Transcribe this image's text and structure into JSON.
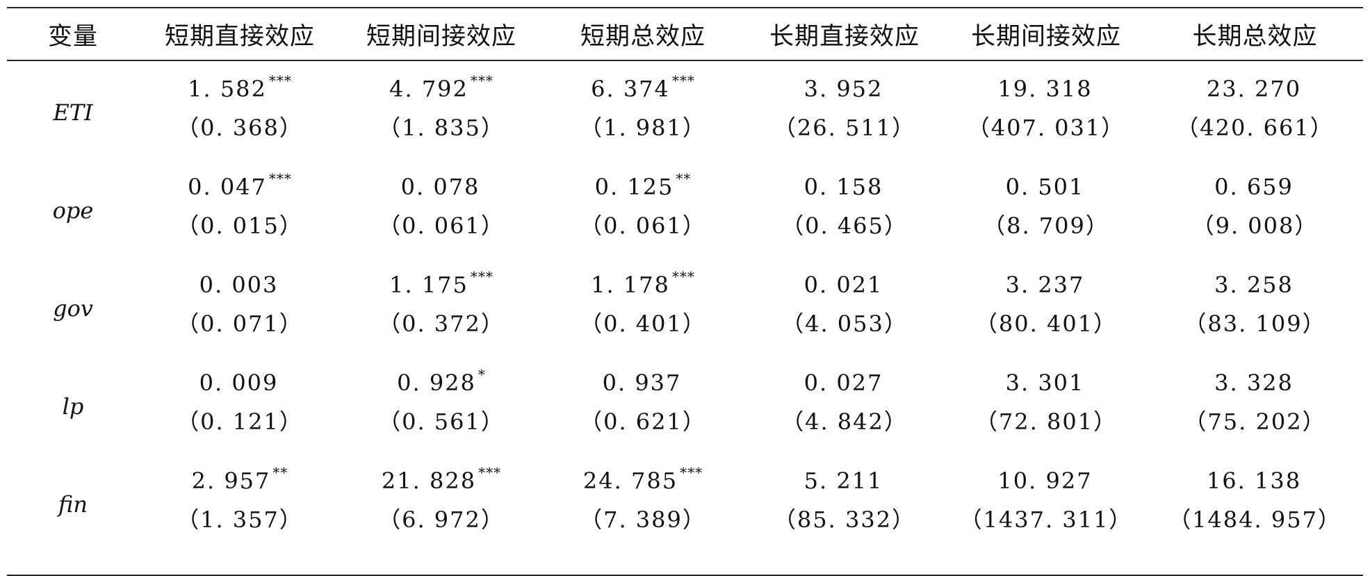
{
  "headers": [
    "变量",
    "短期直接效应",
    "短期间接效应",
    "短期总效应",
    "长期直接效应",
    "长期间接效应",
    "长期总效应"
  ],
  "rows": [
    {
      "var": "ETI",
      "cells": [
        {
          "coef": "1. 582",
          "stars": "***",
          "se": "（0. 368）"
        },
        {
          "coef": "4. 792",
          "stars": "***",
          "se": "（1. 835）"
        },
        {
          "coef": "6. 374",
          "stars": "***",
          "se": "（1. 981）"
        },
        {
          "coef": "3. 952",
          "stars": "",
          "se": "（26. 511）"
        },
        {
          "coef": "19. 318",
          "stars": "",
          "se": "（407. 031）"
        },
        {
          "coef": "23. 270",
          "stars": "",
          "se": "（420. 661）"
        }
      ]
    },
    {
      "var": "ope",
      "cells": [
        {
          "coef": "0. 047",
          "stars": "***",
          "se": "（0. 015）"
        },
        {
          "coef": "0. 078",
          "stars": "",
          "se": "（0. 061）"
        },
        {
          "coef": "0. 125",
          "stars": "**",
          "se": "（0. 061）"
        },
        {
          "coef": "0. 158",
          "stars": "",
          "se": "（0. 465）"
        },
        {
          "coef": "0. 501",
          "stars": "",
          "se": "（8. 709）"
        },
        {
          "coef": "0. 659",
          "stars": "",
          "se": "（9. 008）"
        }
      ]
    },
    {
      "var": "gov",
      "cells": [
        {
          "coef": "0. 003",
          "stars": "",
          "se": "（0. 071）"
        },
        {
          "coef": "1. 175",
          "stars": "***",
          "se": "（0. 372）"
        },
        {
          "coef": "1. 178",
          "stars": "***",
          "se": "（0. 401）"
        },
        {
          "coef": "0. 021",
          "stars": "",
          "se": "（4. 053）"
        },
        {
          "coef": "3. 237",
          "stars": "",
          "se": "（80. 401）"
        },
        {
          "coef": "3. 258",
          "stars": "",
          "se": "（83. 109）"
        }
      ]
    },
    {
      "var": "lp",
      "cells": [
        {
          "coef": "0. 009",
          "stars": "",
          "se": "（0. 121）"
        },
        {
          "coef": "0. 928",
          "stars": "*",
          "se": "（0. 561）"
        },
        {
          "coef": "0. 937",
          "stars": "",
          "se": "（0. 621）"
        },
        {
          "coef": "0. 027",
          "stars": "",
          "se": "（4. 842）"
        },
        {
          "coef": "3. 301",
          "stars": "",
          "se": "（72. 801）"
        },
        {
          "coef": "3. 328",
          "stars": "",
          "se": "（75. 202）"
        }
      ]
    },
    {
      "var": "fin",
      "cells": [
        {
          "coef": "2. 957",
          "stars": "**",
          "se": "（1. 357）"
        },
        {
          "coef": "21. 828",
          "stars": "***",
          "se": "（6. 972）"
        },
        {
          "coef": "24. 785",
          "stars": "***",
          "se": "（7. 389）"
        },
        {
          "coef": "5. 211",
          "stars": "",
          "se": "（85. 332）"
        },
        {
          "coef": "10. 927",
          "stars": "",
          "se": "（1437. 311）"
        },
        {
          "coef": "16. 138",
          "stars": "",
          "se": "（1484. 957）"
        }
      ]
    }
  ]
}
